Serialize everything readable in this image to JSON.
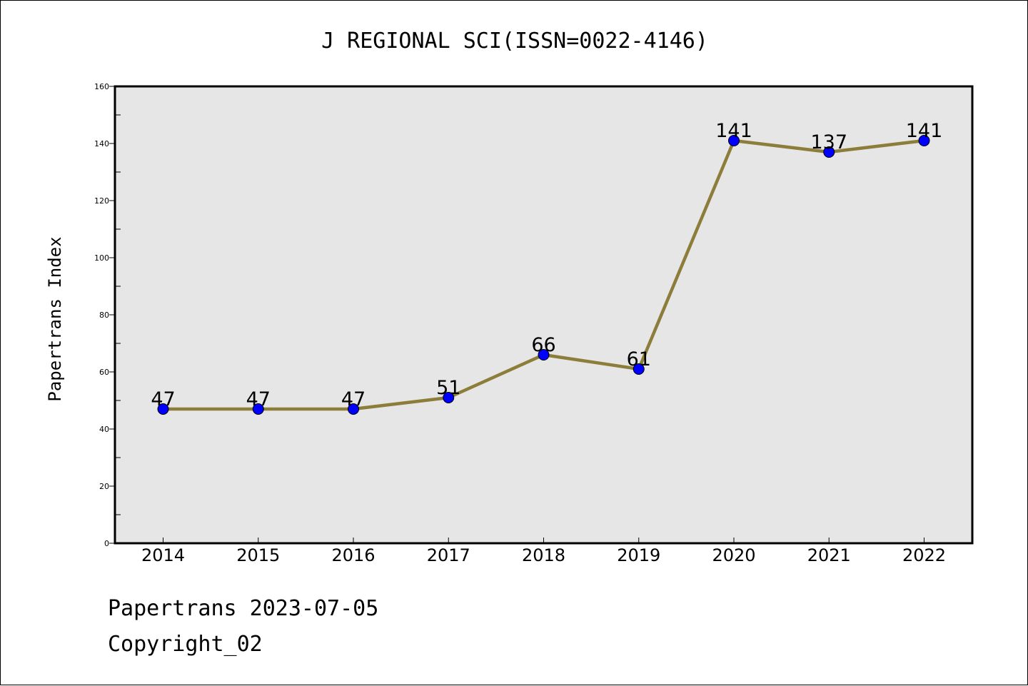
{
  "chart_data": {
    "type": "line",
    "title": "J REGIONAL SCI(ISSN=0022-4146)",
    "xlabel": "",
    "ylabel": "Papertrans Index",
    "categories": [
      "2014",
      "2015",
      "2016",
      "2017",
      "2018",
      "2019",
      "2020",
      "2021",
      "2022"
    ],
    "series": [
      {
        "values": [
          47,
          47,
          47,
          51,
          66,
          61,
          141,
          137,
          141
        ]
      }
    ],
    "data_labels": [
      "47",
      "47",
      "47",
      "51",
      "66",
      "61",
      "141",
      "137",
      "141"
    ],
    "ylim": [
      0,
      160
    ],
    "y_ticks": [
      0,
      20,
      40,
      60,
      80,
      100,
      120,
      140,
      160
    ],
    "y_tick_labels": [
      "0",
      "20",
      "40",
      "60",
      "80",
      "100",
      "120",
      "140",
      "160"
    ],
    "grid": false,
    "legend": "none",
    "colors": {
      "line": "#8c7d3a",
      "marker": "#0000ff",
      "marker_edge": "#000000",
      "plot_background": "#e6e6e6"
    }
  },
  "footer": {
    "date_text": "Papertrans 2023-07-05",
    "copyright_text": "Copyright_02"
  }
}
